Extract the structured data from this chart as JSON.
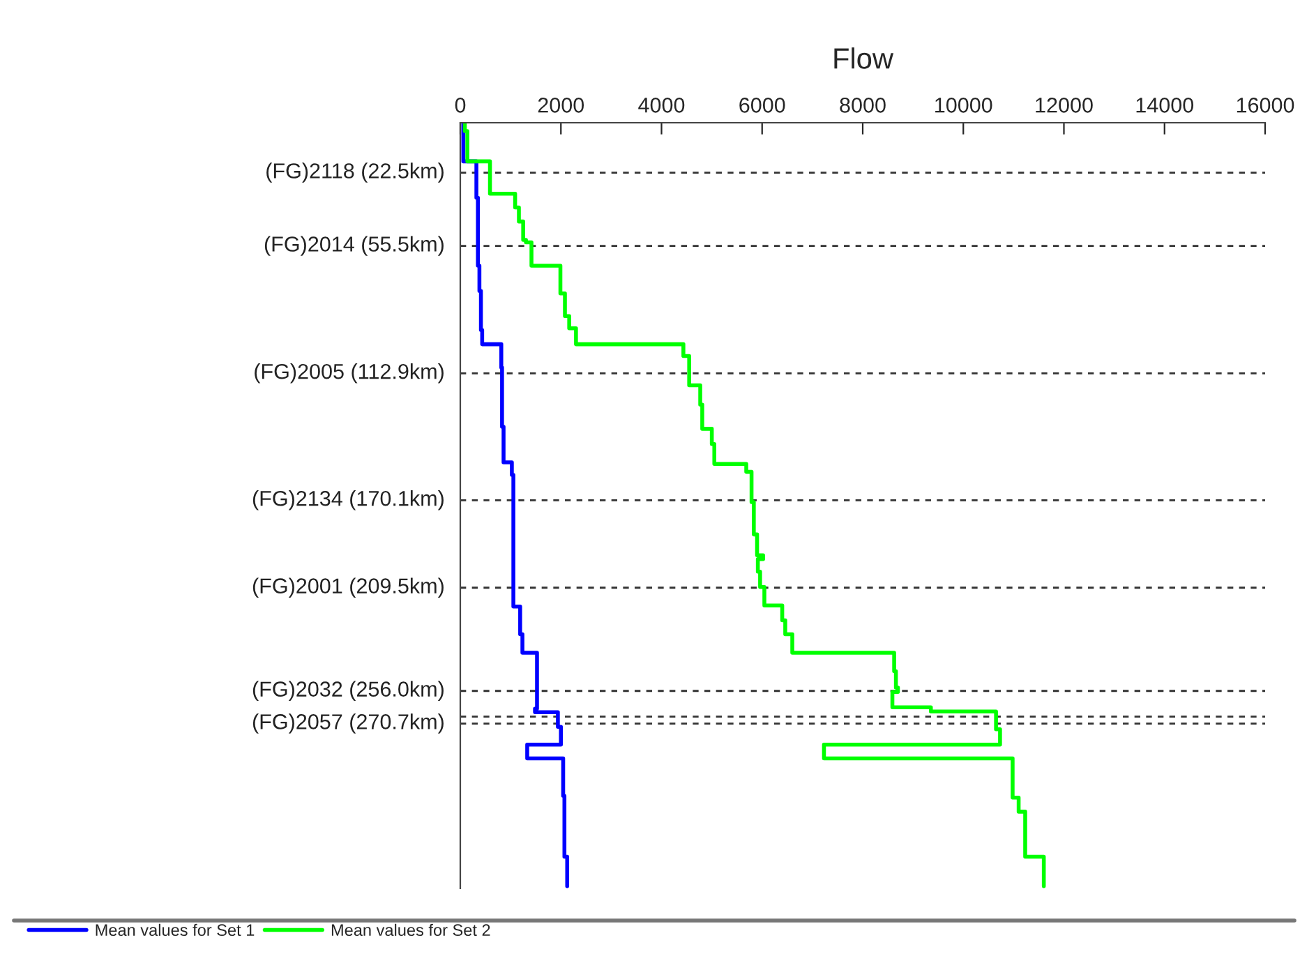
{
  "chart_data": {
    "type": "line",
    "title": "Flow",
    "xlim": [
      0,
      16000
    ],
    "xticks": [
      0,
      2000,
      4000,
      6000,
      8000,
      10000,
      12000,
      14000,
      16000
    ],
    "ylim": [
      345,
      0
    ],
    "ref_lines": [
      {
        "axis": "y",
        "value": 22.5,
        "label": "(FG)2118 (22.5km)",
        "color": "#333333",
        "line_style": "dashed"
      },
      {
        "axis": "y",
        "value": 55.5,
        "label": "(FG)2014 (55.5km)",
        "color": "#333333",
        "line_style": "dashed"
      },
      {
        "axis": "y",
        "value": 112.9,
        "label": "(FG)2005 (112.9km)",
        "color": "#333333",
        "line_style": "dashed"
      },
      {
        "axis": "y",
        "value": 170.1,
        "label": "(FG)2134 (170.1km)",
        "color": "#333333",
        "line_style": "dashed"
      },
      {
        "axis": "y",
        "value": 209.5,
        "label": "(FG)2001 (209.5km)",
        "color": "#333333",
        "line_style": "dashed"
      },
      {
        "axis": "y",
        "value": 256.0,
        "label": "(FG)2032 (256.0km)",
        "color": "#333333",
        "line_style": "dashed"
      },
      {
        "axis": "y",
        "value": 267.6,
        "label": null,
        "color": "#333333",
        "line_style": "dashed"
      },
      {
        "axis": "y",
        "value": 270.7,
        "label": "(FG)2057 (270.7km)",
        "color": "#333333",
        "line_style": "dashed"
      }
    ],
    "tick_labels": "x",
    "legend": "bottom",
    "marker": "none",
    "line_style": "solid",
    "series": [
      {
        "name": "Mean values for Set 1",
        "color": "#0000ff",
        "x": [
          60,
          60,
          320,
          320,
          350,
          350,
          380,
          380,
          410,
          410,
          435,
          435,
          815,
          815,
          830,
          830,
          860,
          860,
          1025,
          1025,
          1055,
          1055,
          1190,
          1190,
          1235,
          1235,
          1525,
          1525,
          1485,
          1485,
          1940,
          1940,
          2000,
          2000,
          1330,
          1330,
          2045,
          2045,
          2070,
          2070,
          2125,
          2125
        ],
        "values": [
          0,
          17.4,
          17.4,
          33.8,
          33.8,
          64.4,
          64.4,
          75.8,
          75.8,
          93.4,
          93.4,
          99.8,
          99.8,
          110.3,
          110.3,
          137,
          137,
          153,
          153,
          158.7,
          158.7,
          218,
          218,
          230.5,
          230.5,
          238.8,
          238.8,
          264,
          264,
          265.6,
          265.6,
          272.2,
          272.2,
          280.2,
          280.2,
          286.4,
          286.4,
          303.3,
          303.3,
          330.7,
          330.7,
          344
        ]
      },
      {
        "name": "Mean values for Set 2",
        "color": "#00ff00",
        "x": [
          90,
          90,
          140,
          140,
          590,
          590,
          1090,
          1090,
          1165,
          1165,
          1250,
          1250,
          1305,
          1305,
          1415,
          1415,
          1990,
          1990,
          2080,
          2080,
          2165,
          2165,
          2300,
          2300,
          4435,
          4435,
          4550,
          4550,
          4770,
          4770,
          4810,
          4810,
          5000,
          5000,
          5050,
          5050,
          5685,
          5685,
          5790,
          5790,
          5835,
          5835,
          5900,
          5900,
          6020,
          6020,
          5915,
          5915,
          5960,
          5960,
          6045,
          6045,
          6400,
          6400,
          6460,
          6460,
          6600,
          6600,
          8625,
          8625,
          8660,
          8660,
          8700,
          8700,
          8590,
          8590,
          9355,
          9355,
          10650,
          10650,
          10730,
          10730,
          7230,
          7230,
          10980,
          10980,
          11100,
          11100,
          11230,
          11230,
          11600,
          11600
        ],
        "values": [
          0,
          3.8,
          3.8,
          17.4,
          17.4,
          32,
          32,
          38.2,
          38.2,
          44.5,
          44.5,
          52.8,
          52.8,
          53.9,
          53.9,
          64.4,
          64.4,
          76.9,
          76.9,
          87.1,
          87.1,
          92.6,
          92.6,
          99.8,
          99.8,
          105.1,
          105.1,
          118.3,
          118.3,
          127,
          127,
          137.9,
          137.9,
          144.8,
          144.8,
          153.7,
          153.7,
          157.3,
          157.3,
          170.9,
          170.9,
          185.5,
          185.5,
          194.9,
          194.9,
          196.6,
          196.6,
          202.3,
          202.3,
          209.2,
          209.2,
          217.5,
          217.5,
          224.2,
          224.2,
          230.5,
          230.5,
          238.8,
          238.8,
          247.1,
          247.1,
          254.5,
          254.5,
          256.5,
          256.5,
          263.4,
          263.4,
          265.3,
          265.3,
          273.3,
          273.3,
          280.2,
          280.2,
          286.4,
          286.4,
          304.1,
          304.1,
          310.4,
          310.4,
          330.7,
          330.7,
          344
        ]
      }
    ]
  }
}
